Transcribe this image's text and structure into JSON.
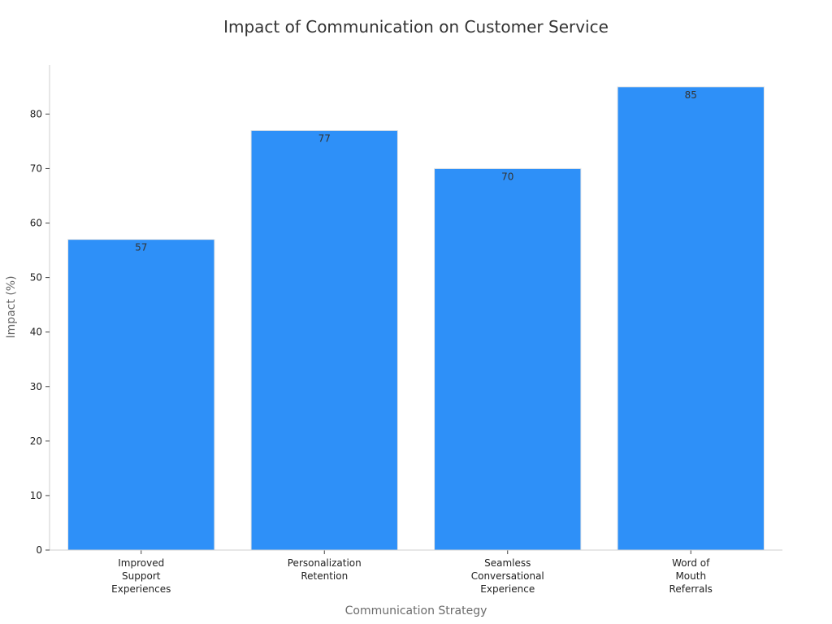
{
  "chart_data": {
    "type": "bar",
    "title": "Impact of Communication on Customer Service",
    "xlabel": "Communication Strategy",
    "ylabel": "Impact (%)",
    "categories": [
      [
        "Improved",
        "Support",
        "Experiences"
      ],
      [
        "Personalization",
        "Retention"
      ],
      [
        "Seamless",
        "Conversational",
        "Experience"
      ],
      [
        "Word of",
        "Mouth",
        "Referrals"
      ]
    ],
    "values": [
      57,
      77,
      70,
      85
    ],
    "ylim": [
      0,
      89
    ],
    "yticks": [
      0,
      10,
      20,
      30,
      40,
      50,
      60,
      70,
      80
    ],
    "bar_color": "#2e90f8",
    "grid": false,
    "legend": "none"
  }
}
